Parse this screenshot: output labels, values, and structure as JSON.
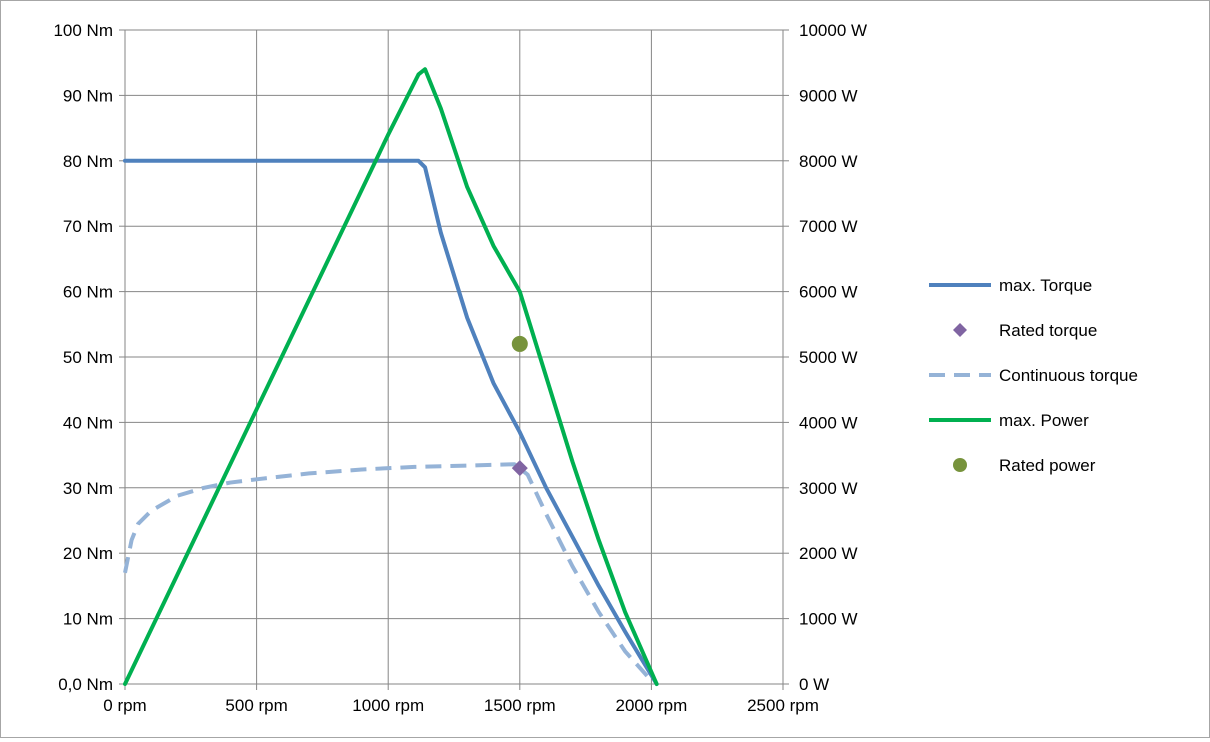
{
  "chart_data": {
    "type": "line",
    "title": "",
    "xlabel": "",
    "ylabel": "",
    "y2label": "",
    "xlim": [
      0,
      2500
    ],
    "ylim": [
      0,
      100
    ],
    "y2lim": [
      0,
      10000
    ],
    "grid": true,
    "legend_position": "right",
    "x_ticks": [
      "0 rpm",
      "500 rpm",
      "1000 rpm",
      "1500 rpm",
      "2000 rpm",
      "2500 rpm"
    ],
    "y_ticks": [
      "0,0 Nm",
      "10 Nm",
      "20 Nm",
      "30 Nm",
      "40 Nm",
      "50 Nm",
      "60 Nm",
      "70 Nm",
      "80 Nm",
      "90 Nm",
      "100 Nm"
    ],
    "y2_ticks": [
      "0 W",
      "1000 W",
      "2000 W",
      "3000 W",
      "4000 W",
      "5000 W",
      "6000 W",
      "7000 W",
      "8000 W",
      "9000 W",
      "10000 W"
    ],
    "series": [
      {
        "name": "max. Torque",
        "axis": "left",
        "style": "line",
        "color": "#4f81bd",
        "points": [
          [
            0,
            80
          ],
          [
            500,
            80
          ],
          [
            1000,
            80
          ],
          [
            1115,
            80
          ],
          [
            1140,
            79
          ],
          [
            1200,
            69
          ],
          [
            1300,
            56
          ],
          [
            1400,
            46
          ],
          [
            1500,
            38.5
          ],
          [
            1600,
            30
          ],
          [
            1700,
            22.5
          ],
          [
            1800,
            15
          ],
          [
            1900,
            8
          ],
          [
            2020,
            0
          ]
        ]
      },
      {
        "name": "Rated torque",
        "axis": "left",
        "style": "marker-diamond",
        "color": "#8064a2",
        "points": [
          [
            1500,
            33
          ]
        ]
      },
      {
        "name": "Continuous torque",
        "axis": "left",
        "style": "dashed",
        "color": "#95b3d7",
        "points": [
          [
            0,
            17
          ],
          [
            25,
            22
          ],
          [
            50,
            24.5
          ],
          [
            100,
            26.5
          ],
          [
            200,
            28.8
          ],
          [
            300,
            30
          ],
          [
            400,
            30.8
          ],
          [
            500,
            31.3
          ],
          [
            700,
            32.2
          ],
          [
            900,
            32.8
          ],
          [
            1100,
            33.2
          ],
          [
            1300,
            33.4
          ],
          [
            1480,
            33.6
          ],
          [
            1530,
            32
          ],
          [
            1600,
            26
          ],
          [
            1700,
            18
          ],
          [
            1800,
            11
          ],
          [
            1900,
            5
          ],
          [
            2000,
            0.5
          ]
        ]
      },
      {
        "name": "max. Power",
        "axis": "right",
        "style": "line",
        "color": "#00b050",
        "points": [
          [
            0,
            0
          ],
          [
            500,
            4200
          ],
          [
            1000,
            8400
          ],
          [
            1115,
            9320
          ],
          [
            1140,
            9400
          ],
          [
            1200,
            8800
          ],
          [
            1300,
            7600
          ],
          [
            1400,
            6700
          ],
          [
            1500,
            6000
          ],
          [
            1600,
            4700
          ],
          [
            1700,
            3400
          ],
          [
            1800,
            2200
          ],
          [
            1900,
            1100
          ],
          [
            2020,
            0
          ]
        ]
      },
      {
        "name": "Rated power",
        "axis": "right",
        "style": "marker-circle",
        "color": "#77933c",
        "points": [
          [
            1500,
            5200
          ]
        ]
      }
    ]
  }
}
